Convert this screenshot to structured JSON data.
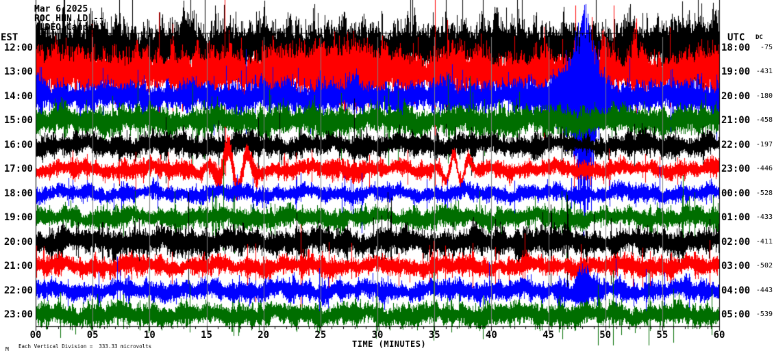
{
  "header": {
    "date": "Mar 6,2025",
    "station_line": "ROC HHN LD --",
    "location_line": "(LDEO Campus)"
  },
  "axes": {
    "left_header": "EST",
    "right_header": "UTC",
    "dc_header": "DC",
    "x_title": "TIME (MINUTES)",
    "x_tick_labels": [
      "00",
      "05",
      "10",
      "15",
      "20",
      "25",
      "30",
      "35",
      "40",
      "45",
      "50",
      "55",
      "60"
    ],
    "minor_tick_every_min": 1,
    "major_tick_every_min": 5
  },
  "footer": {
    "scale_note": "Each Vertical Division =  333.33 microvolts",
    "corner_mark": "M"
  },
  "colors": {
    "background": "#ffffff",
    "grid": "#808080",
    "frame": "#000000",
    "trace_cycle": [
      "#000000",
      "#ff0000",
      "#0000ff",
      "#006e00"
    ]
  },
  "chart_data": {
    "type": "helicorder-seismogram",
    "x_range_minutes": [
      0,
      60
    ],
    "vertical_division_microvolts": 333.33,
    "rows": [
      {
        "est": "12:00",
        "utc": "18:00",
        "dc": "-75",
        "color": "black",
        "amp": 38,
        "events": [
          {
            "kind": "burst",
            "t": 57.5,
            "w": 1.2,
            "a": 16
          }
        ]
      },
      {
        "est": "13:00",
        "utc": "19:00",
        "dc": "-431",
        "color": "red",
        "amp": 33,
        "events": [
          {
            "kind": "burst",
            "t": 27.3,
            "w": 2.2,
            "a": 18
          },
          {
            "kind": "burst",
            "t": 21.0,
            "w": 0.8,
            "a": 12
          }
        ]
      },
      {
        "est": "14:00",
        "utc": "20:00",
        "dc": "-180",
        "color": "blue",
        "amp": 22,
        "events": [
          {
            "kind": "burst",
            "t": 47.5,
            "w": 1.6,
            "a": 42,
            "down": 1.1
          },
          {
            "kind": "burst",
            "t": 48.2,
            "w": 0.6,
            "a": 90,
            "down": 1.7
          }
        ]
      },
      {
        "est": "15:00",
        "utc": "21:00",
        "dc": "-458",
        "color": "green",
        "amp": 19,
        "events": []
      },
      {
        "est": "16:00",
        "utc": "22:00",
        "dc": "-197",
        "color": "black",
        "amp": 15,
        "events": []
      },
      {
        "est": "17:00",
        "utc": "23:00",
        "dc": "-446",
        "color": "red",
        "amp": 11,
        "events": [
          {
            "kind": "wave",
            "t": 17.3,
            "w": 1.2,
            "a": 34,
            "p": 1.8
          },
          {
            "kind": "wave",
            "t": 37.0,
            "w": 0.9,
            "a": 26,
            "p": 1.4
          },
          {
            "kind": "burst",
            "t": 17.3,
            "w": 1.4,
            "a": 8
          }
        ]
      },
      {
        "est": "18:00",
        "utc": "00:00",
        "dc": "-528",
        "color": "blue",
        "amp": 11,
        "events": []
      },
      {
        "est": "19:00",
        "utc": "01:00",
        "dc": "-433",
        "color": "green",
        "amp": 14,
        "events": []
      },
      {
        "est": "20:00",
        "utc": "02:00",
        "dc": "-411",
        "color": "black",
        "amp": 17,
        "events": []
      },
      {
        "est": "21:00",
        "utc": "03:00",
        "dc": "-502",
        "color": "red",
        "amp": 13,
        "events": []
      },
      {
        "est": "22:00",
        "utc": "04:00",
        "dc": "-443",
        "color": "blue",
        "amp": 13,
        "events": [
          {
            "kind": "burst",
            "t": 48.0,
            "w": 0.5,
            "a": 30,
            "down": 0.8
          }
        ]
      },
      {
        "est": "23:00",
        "utc": "05:00",
        "dc": "-539",
        "color": "green",
        "amp": 15,
        "events": []
      }
    ]
  }
}
